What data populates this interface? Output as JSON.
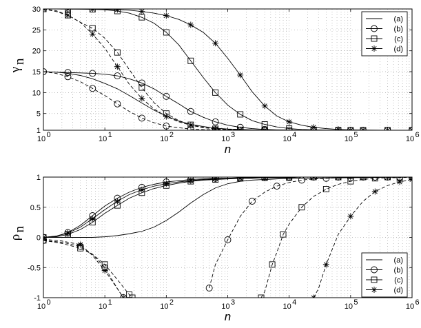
{
  "chart_data": [
    {
      "type": "line",
      "xscale": "log",
      "xlim": [
        1,
        1000000
      ],
      "ylim": [
        1,
        30
      ],
      "xlabel": "n",
      "ylabel": "γ",
      "ylabel_sub": "n",
      "x_ticks": [
        {
          "base": "10",
          "exp": "0"
        },
        {
          "base": "10",
          "exp": "1"
        },
        {
          "base": "10",
          "exp": "2"
        },
        {
          "base": "10",
          "exp": "3"
        },
        {
          "base": "10",
          "exp": "4"
        },
        {
          "base": "10",
          "exp": "5"
        },
        {
          "base": "10",
          "exp": "6"
        }
      ],
      "y_ticks": [
        "1",
        "5",
        "10",
        "15",
        "20",
        "25",
        "30"
      ],
      "grid": true,
      "legend_position": "top-right",
      "series": [
        {
          "name": "(a)",
          "marker": "none",
          "dash": "solid",
          "x": [
            1,
            1.6,
            2.5,
            4,
            6.3,
            10,
            16,
            25,
            40,
            63,
            100,
            160,
            250,
            400,
            630,
            1000,
            1600,
            2500,
            4000,
            10000,
            100000,
            1000000
          ],
          "y": [
            15,
            14.9,
            14.6,
            14.1,
            13.3,
            12.2,
            10.9,
            9.3,
            7.5,
            5.8,
            4.4,
            3.2,
            2.4,
            1.9,
            1.5,
            1.3,
            1.2,
            1.1,
            1.05,
            1.02,
            1,
            1
          ]
        },
        {
          "name": "(b)",
          "marker": "circle",
          "dash": "solid",
          "x": [
            1,
            1.6,
            2.5,
            4,
            6.3,
            10,
            16,
            25,
            40,
            63,
            100,
            160,
            250,
            400,
            630,
            1000,
            1600,
            2500,
            4000,
            6300,
            10000,
            16000,
            25000,
            40000,
            63000,
            100000,
            160000,
            250000,
            400000,
            630000,
            1000000
          ],
          "y": [
            15,
            14.9,
            14.8,
            14.7,
            14.6,
            14.4,
            14,
            13.3,
            12.3,
            10.9,
            9.1,
            7.3,
            5.5,
            4.1,
            3,
            2.2,
            1.7,
            1.4,
            1.2,
            1.1,
            1.05,
            1.02,
            1.01,
            1,
            1,
            1,
            1,
            1,
            1,
            1,
            1
          ]
        },
        {
          "name": "(b)",
          "marker": "circle",
          "dash": "dashed",
          "x": [
            1,
            1.6,
            2.5,
            4,
            6.3,
            10,
            16,
            25,
            40,
            63,
            100,
            160,
            250,
            400,
            630,
            1000,
            1600,
            2500,
            4000,
            10000,
            100000,
            1000000
          ],
          "y": [
            15,
            14.6,
            13.8,
            12.6,
            11,
            9.3,
            7.3,
            5.5,
            3.9,
            2.8,
            2,
            1.6,
            1.3,
            1.15,
            1.08,
            1.05,
            1.03,
            1.02,
            1.01,
            1,
            1,
            1
          ]
        },
        {
          "name": "(c)",
          "marker": "square",
          "dash": "solid",
          "x": [
            1,
            1.6,
            2.5,
            4,
            6.3,
            10,
            16,
            25,
            40,
            63,
            100,
            160,
            250,
            400,
            630,
            1000,
            1600,
            2500,
            4000,
            6300,
            10000,
            16000,
            25000,
            40000,
            63000,
            100000,
            160000,
            250000,
            400000,
            630000,
            1000000
          ],
          "y": [
            30,
            29.99,
            29.98,
            29.96,
            29.9,
            29.8,
            29.5,
            29,
            28,
            26.6,
            24.4,
            21.4,
            17.6,
            13.6,
            10,
            7,
            4.8,
            3.3,
            2.4,
            1.8,
            1.4,
            1.2,
            1.1,
            1.05,
            1.02,
            1.01,
            1,
            1,
            1,
            1,
            1
          ]
        },
        {
          "name": "(c)",
          "marker": "square",
          "dash": "dashed",
          "x": [
            1,
            1.6,
            2.5,
            4,
            6.3,
            10,
            16,
            25,
            40,
            63,
            100,
            160,
            250,
            400,
            630,
            1000,
            1600,
            2500,
            4000,
            10000,
            100000,
            1000000
          ],
          "y": [
            30,
            29.6,
            28.5,
            26.8,
            25.4,
            23,
            19.6,
            15.5,
            11.2,
            7.6,
            5,
            3.3,
            2.3,
            1.7,
            1.35,
            1.2,
            1.1,
            1.06,
            1.03,
            1.01,
            1,
            1
          ]
        },
        {
          "name": "(d)",
          "marker": "star",
          "dash": "solid",
          "x": [
            1,
            1.6,
            2.5,
            4,
            6.3,
            10,
            16,
            25,
            40,
            63,
            100,
            160,
            250,
            400,
            630,
            1000,
            1600,
            2500,
            4000,
            6300,
            10000,
            16000,
            25000,
            40000,
            63000,
            100000,
            160000,
            250000,
            400000,
            630000,
            1000000
          ],
          "y": [
            30,
            29.99,
            29.98,
            29.97,
            29.95,
            29.9,
            29.85,
            29.7,
            29.4,
            29,
            28.4,
            27.5,
            26.2,
            24.4,
            21.8,
            18.2,
            14.2,
            10.2,
            6.8,
            4.4,
            3,
            2.2,
            1.7,
            1.4,
            1.2,
            1.1,
            1.05,
            1.02,
            1.01,
            1,
            1
          ]
        },
        {
          "name": "(d)",
          "marker": "star",
          "dash": "dashed",
          "x": [
            1,
            1.6,
            2.5,
            4,
            6.3,
            10,
            16,
            25,
            40,
            63,
            100,
            160,
            250,
            400,
            630,
            1000,
            1600,
            2500,
            4000,
            10000,
            100000,
            1000000
          ],
          "y": [
            30,
            29.4,
            28.5,
            26.8,
            24,
            20.6,
            16.2,
            12,
            8.6,
            6.1,
            4.3,
            3,
            2.2,
            1.6,
            1.3,
            1.15,
            1.07,
            1.04,
            1.02,
            1.01,
            1,
            1
          ]
        }
      ]
    },
    {
      "type": "line",
      "xscale": "log",
      "xlim": [
        1,
        1000000
      ],
      "ylim": [
        -1,
        1
      ],
      "xlabel": "n",
      "ylabel": "ρ",
      "ylabel_sub": "n",
      "x_ticks": [
        {
          "base": "10",
          "exp": "0"
        },
        {
          "base": "10",
          "exp": "1"
        },
        {
          "base": "10",
          "exp": "2"
        },
        {
          "base": "10",
          "exp": "3"
        },
        {
          "base": "10",
          "exp": "4"
        },
        {
          "base": "10",
          "exp": "5"
        },
        {
          "base": "10",
          "exp": "6"
        }
      ],
      "y_ticks": [
        "-1",
        "-0.5",
        "0",
        "0.5",
        "1"
      ],
      "grid": true,
      "legend_position": "bottom-right",
      "series": [
        {
          "name": "(a)",
          "marker": "none",
          "dash": "solid",
          "x": [
            1,
            2,
            4,
            6.3,
            10,
            16,
            25,
            40,
            63,
            100,
            160,
            250,
            400,
            630,
            1000,
            1600,
            2500,
            4000,
            6300,
            10000,
            100000,
            1000000
          ],
          "y": [
            0,
            0,
            0,
            0,
            0.01,
            0.03,
            0.06,
            0.1,
            0.17,
            0.28,
            0.42,
            0.57,
            0.71,
            0.82,
            0.89,
            0.93,
            0.95,
            0.96,
            0.97,
            0.98,
            0.99,
            1
          ]
        },
        {
          "name": "(b)",
          "marker": "circle",
          "dash": "solid",
          "x": [
            1,
            1.6,
            2.5,
            4,
            6.3,
            10,
            16,
            25,
            40,
            63,
            100,
            160,
            250,
            400,
            630,
            1000,
            1600,
            2500,
            4000,
            6300,
            10000,
            16000,
            25000,
            40000,
            63000,
            100000,
            160000,
            250000,
            400000,
            630000,
            1000000
          ],
          "y": [
            0,
            0.02,
            0.08,
            0.2,
            0.36,
            0.52,
            0.65,
            0.75,
            0.83,
            0.88,
            0.92,
            0.94,
            0.96,
            0.97,
            0.98,
            0.98,
            0.99,
            0.99,
            0.99,
            0.99,
            1,
            1,
            1,
            1,
            1,
            1,
            1,
            1,
            1,
            1,
            1
          ]
        },
        {
          "name": "(b)",
          "marker": "circle",
          "dash": "dashed",
          "x": [
            500,
            630,
            1000,
            1600,
            2500,
            4000,
            6300,
            10000,
            16000,
            25000,
            40000,
            63000,
            100000,
            160000,
            250000,
            400000,
            630000,
            1000000
          ],
          "y": [
            -0.84,
            -0.45,
            -0.04,
            0.35,
            0.6,
            0.75,
            0.85,
            0.91,
            0.95,
            0.97,
            0.98,
            0.99,
            0.99,
            1,
            1,
            1,
            1,
            1
          ]
        },
        {
          "name": "(b)",
          "marker": "circle",
          "dash": "dashed",
          "x": [
            1,
            2,
            4,
            6.3,
            10,
            16,
            20
          ],
          "y": [
            -0.05,
            -0.08,
            -0.15,
            -0.28,
            -0.5,
            -0.85,
            -1
          ]
        },
        {
          "name": "(c)",
          "marker": "square",
          "dash": "solid",
          "x": [
            1,
            1.6,
            2.5,
            4,
            6.3,
            10,
            16,
            25,
            40,
            63,
            100,
            160,
            250,
            400,
            630,
            1000,
            1600,
            2500,
            4000,
            6300,
            10000,
            16000,
            25000,
            40000,
            63000,
            100000,
            160000,
            250000,
            400000,
            630000,
            1000000
          ],
          "y": [
            0,
            0.01,
            0.05,
            0.13,
            0.25,
            0.4,
            0.53,
            0.65,
            0.74,
            0.81,
            0.86,
            0.9,
            0.93,
            0.95,
            0.96,
            0.97,
            0.98,
            0.98,
            0.99,
            0.99,
            0.99,
            1,
            1,
            1,
            1,
            1,
            1,
            1,
            1,
            1,
            1
          ]
        },
        {
          "name": "(c)",
          "marker": "square",
          "dash": "dashed",
          "x": [
            3500,
            4000,
            5300,
            6300,
            8000,
            10000,
            16000,
            25000,
            40000,
            63000,
            100000,
            160000,
            250000,
            400000,
            630000,
            1000000
          ],
          "y": [
            -1,
            -0.9,
            -0.45,
            -0.25,
            0.05,
            0.22,
            0.5,
            0.68,
            0.8,
            0.88,
            0.93,
            0.96,
            0.98,
            0.99,
            0.99,
            1
          ]
        },
        {
          "name": "(c)",
          "marker": "square",
          "dash": "dashed",
          "x": [
            1,
            2,
            4,
            6.3,
            10,
            16,
            25,
            28
          ],
          "y": [
            -0.05,
            -0.1,
            -0.18,
            -0.28,
            -0.45,
            -0.7,
            -0.95,
            -1
          ]
        },
        {
          "name": "(d)",
          "marker": "star",
          "dash": "solid",
          "x": [
            1,
            1.6,
            2.5,
            4,
            6.3,
            10,
            16,
            25,
            40,
            63,
            100,
            160,
            250,
            400,
            630,
            1000,
            1600,
            2500,
            4000,
            6300,
            10000,
            16000,
            25000,
            40000,
            63000,
            100000,
            160000,
            250000,
            400000,
            630000,
            1000000
          ],
          "y": [
            0,
            0.02,
            0.07,
            0.17,
            0.31,
            0.46,
            0.6,
            0.71,
            0.79,
            0.85,
            0.89,
            0.92,
            0.94,
            0.96,
            0.97,
            0.98,
            0.98,
            0.99,
            0.99,
            0.99,
            1,
            1,
            1,
            1,
            1,
            1,
            1,
            1,
            1,
            1,
            1
          ]
        },
        {
          "name": "(d)",
          "marker": "star",
          "dash": "dashed",
          "x": [
            25000,
            30000,
            40000,
            63000,
            100000,
            160000,
            250000,
            400000,
            630000,
            1000000
          ],
          "y": [
            -1,
            -0.85,
            -0.45,
            0.05,
            0.35,
            0.6,
            0.76,
            0.86,
            0.92,
            0.96
          ]
        },
        {
          "name": "(d)",
          "marker": "star",
          "dash": "dashed",
          "x": [
            1,
            2,
            4,
            6.3,
            10,
            16,
            20
          ],
          "y": [
            -0.03,
            -0.06,
            -0.12,
            -0.3,
            -0.55,
            -0.85,
            -1
          ]
        }
      ]
    }
  ]
}
